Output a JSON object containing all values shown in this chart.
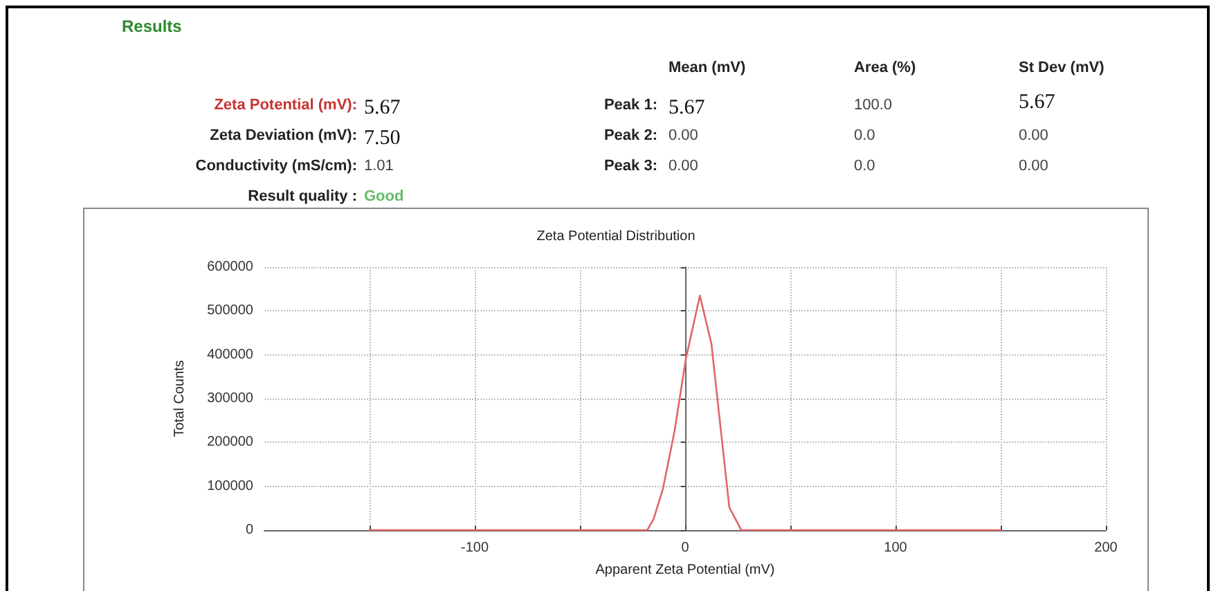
{
  "chart_data": {
    "type": "line",
    "title": "Zeta Potential Distribution",
    "xlabel": "Apparent Zeta Potential (mV)",
    "ylabel": "Total Counts",
    "annotations": [
      "Results",
      "Mean (mV)",
      "Area (%)",
      "St Dev (mV)",
      "Zeta Potential (mV):",
      "5.67",
      "Peak 1:",
      "5.67",
      "100.0",
      "5.67",
      "Zeta Deviation (mV):",
      "7.50",
      "Peak 2:",
      "0.00",
      "0.0",
      "0.00",
      "Conductivity (mS/cm):",
      "1.01",
      "Peak 3:",
      "0.00",
      "0.0",
      "0.00",
      "Result quality :",
      "Good"
    ],
    "series": [
      {
        "color": "#e06666",
        "x": [
          -150,
          -18,
          -15,
          -10.5,
          -5,
          0.4,
          7,
          12.5,
          17,
          21,
          26.7,
          150
        ],
        "values": [
          0,
          0,
          25000,
          95000,
          227000,
          392000,
          535000,
          425000,
          227000,
          52000,
          0,
          0
        ]
      }
    ],
    "xlim": [
      -200,
      200
    ],
    "xticks": [
      {
        "value": -150,
        "label": null
      },
      -100,
      {
        "value": -50,
        "label": null
      },
      0,
      {
        "value": 50,
        "label": null
      },
      100,
      {
        "value": 150,
        "label": null
      },
      200
    ],
    "ylim": [
      0,
      600000
    ],
    "yticks": [
      0,
      100000,
      200000,
      300000,
      400000,
      500000,
      600000
    ],
    "grid": true,
    "marker": "none",
    "line_style": "solid"
  }
}
